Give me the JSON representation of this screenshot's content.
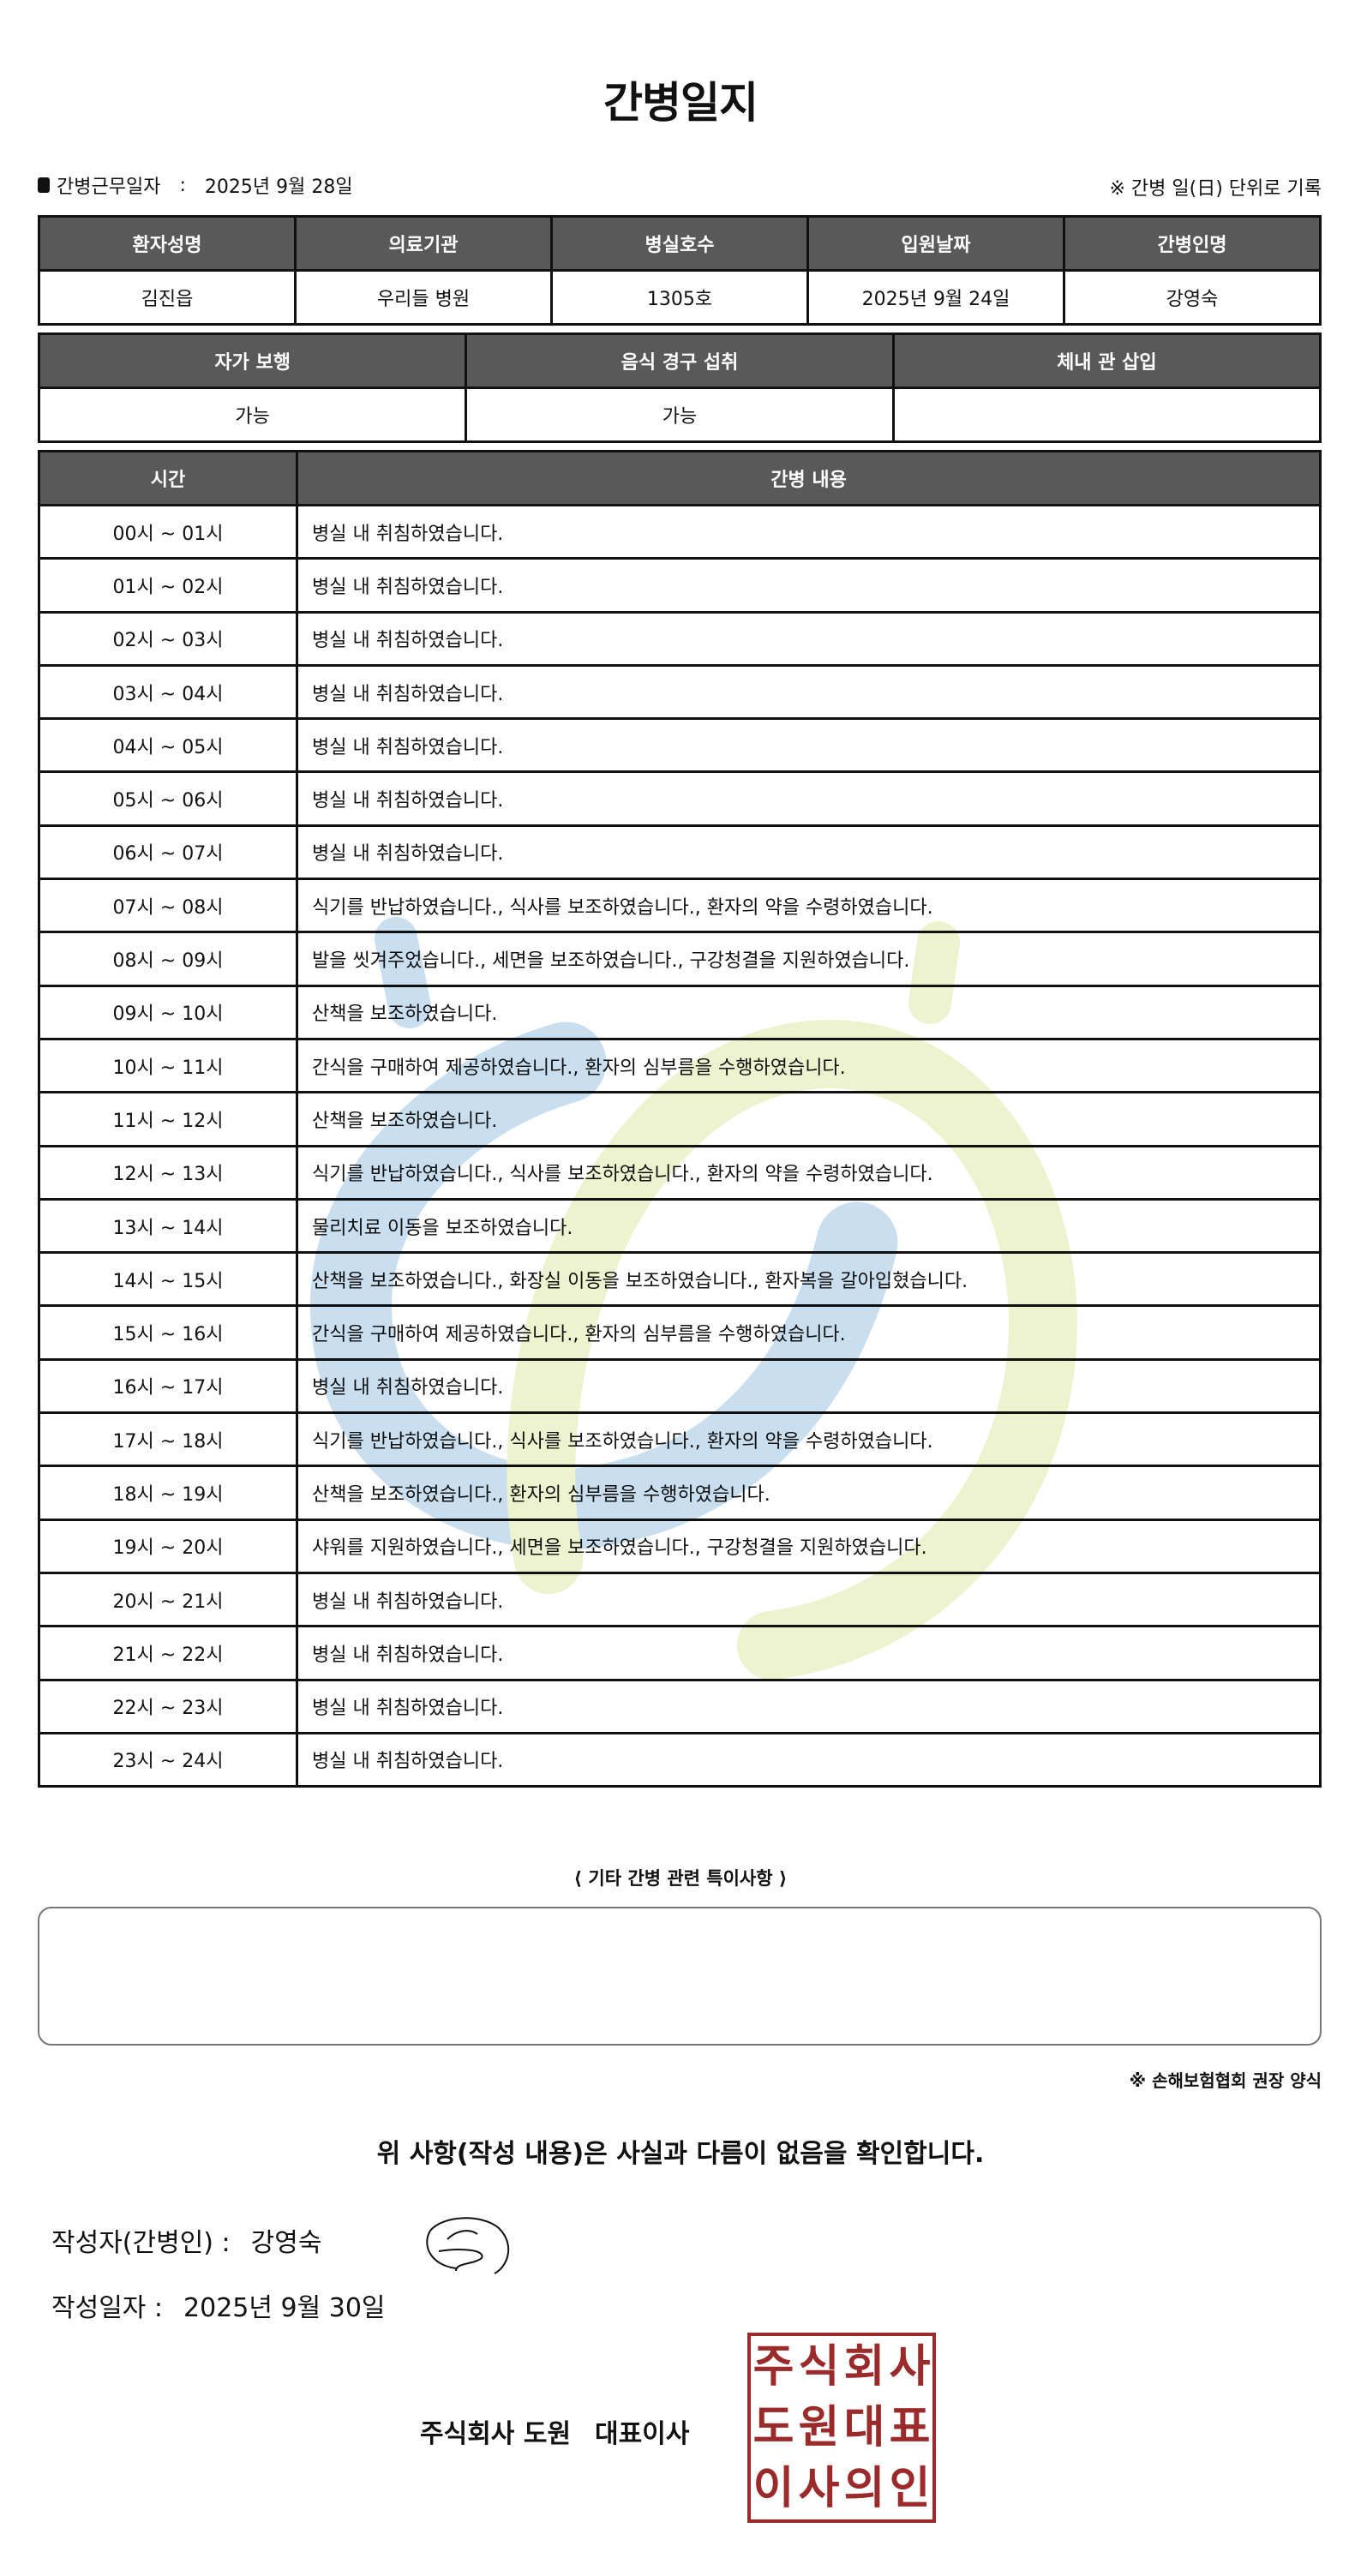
{
  "title": "간병일지",
  "work_date": {
    "label": "간병근무일자",
    "separator": ":",
    "value": "2025년 9월 28일"
  },
  "record_note": "※ 간병 일(日) 단위로 기록",
  "patient_table": {
    "headers": [
      "환자성명",
      "의료기관",
      "병실호수",
      "입원날짜",
      "간병인명"
    ],
    "values": [
      "김진읍",
      "우리들 병원",
      "1305호",
      "2025년 9월 24일",
      "강영숙"
    ]
  },
  "status_table": {
    "headers": [
      "자가 보행",
      "음식 경구 섭취",
      "체내 관 삽입"
    ],
    "values": [
      "가능",
      "가능",
      ""
    ]
  },
  "care_log": {
    "headers": [
      "시간",
      "간병 내용"
    ],
    "rows": [
      {
        "time": "00시 ~ 01시",
        "content": "병실 내 취침하였습니다."
      },
      {
        "time": "01시 ~ 02시",
        "content": "병실 내 취침하였습니다."
      },
      {
        "time": "02시 ~ 03시",
        "content": "병실 내 취침하였습니다."
      },
      {
        "time": "03시 ~ 04시",
        "content": "병실 내 취침하였습니다."
      },
      {
        "time": "04시 ~ 05시",
        "content": "병실 내 취침하였습니다."
      },
      {
        "time": "05시 ~ 06시",
        "content": "병실 내 취침하였습니다."
      },
      {
        "time": "06시 ~ 07시",
        "content": "병실 내 취침하였습니다."
      },
      {
        "time": "07시 ~ 08시",
        "content": "식기를 반납하였습니다., 식사를 보조하였습니다., 환자의 약을 수령하였습니다."
      },
      {
        "time": "08시 ~ 09시",
        "content": "발을 씻겨주었습니다., 세면을 보조하였습니다., 구강청결을 지원하였습니다."
      },
      {
        "time": "09시 ~ 10시",
        "content": "산책을 보조하였습니다."
      },
      {
        "time": "10시 ~ 11시",
        "content": "간식을 구매하여 제공하였습니다., 환자의 심부름을 수행하였습니다."
      },
      {
        "time": "11시 ~ 12시",
        "content": "산책을 보조하였습니다."
      },
      {
        "time": "12시 ~ 13시",
        "content": "식기를 반납하였습니다., 식사를 보조하였습니다., 환자의 약을 수령하였습니다."
      },
      {
        "time": "13시 ~ 14시",
        "content": "물리치료 이동을 보조하였습니다."
      },
      {
        "time": "14시 ~ 15시",
        "content": "산책을 보조하였습니다., 화장실 이동을 보조하였습니다., 환자복을 갈아입혔습니다."
      },
      {
        "time": "15시 ~ 16시",
        "content": "간식을 구매하여 제공하였습니다., 환자의 심부름을 수행하였습니다."
      },
      {
        "time": "16시 ~ 17시",
        "content": "병실 내 취침하였습니다."
      },
      {
        "time": "17시 ~ 18시",
        "content": "식기를 반납하였습니다., 식사를 보조하였습니다., 환자의 약을 수령하였습니다."
      },
      {
        "time": "18시 ~ 19시",
        "content": "산책을 보조하였습니다., 환자의 심부름을 수행하였습니다."
      },
      {
        "time": "19시 ~ 20시",
        "content": "샤워를 지원하였습니다., 세면을 보조하였습니다., 구강청결을 지원하였습니다."
      },
      {
        "time": "20시 ~ 21시",
        "content": "병실 내 취침하였습니다."
      },
      {
        "time": "21시 ~ 22시",
        "content": "병실 내 취침하였습니다."
      },
      {
        "time": "22시 ~ 23시",
        "content": "병실 내 취침하였습니다."
      },
      {
        "time": "23시 ~ 24시",
        "content": "병실 내 취침하였습니다."
      }
    ]
  },
  "special_notes": {
    "label": "⟨ 기타 간병 관련 특이사항 ⟩",
    "value": ""
  },
  "form_note": "※ 손해보험협회 권장 양식",
  "confirmation": "위 사항(작성 내용)은 사실과 다름이 없음을 확인합니다.",
  "writer": {
    "label": "작성자(간병인) :",
    "value": "강영숙"
  },
  "written_date": {
    "label": "작성일자 :",
    "value": "2025년 9월 30일"
  },
  "company": {
    "name": "주식회사 도원",
    "title": "대표이사"
  },
  "stamp": {
    "text": [
      "주",
      "식",
      "회",
      "사",
      "도",
      "원",
      "대",
      "표",
      "이",
      "사",
      "의",
      "인"
    ],
    "color": "#9b2a2a"
  },
  "colors": {
    "header_bg": "#595959",
    "watermark_blue": "#c9dff0",
    "watermark_green": "#eef3cf"
  }
}
